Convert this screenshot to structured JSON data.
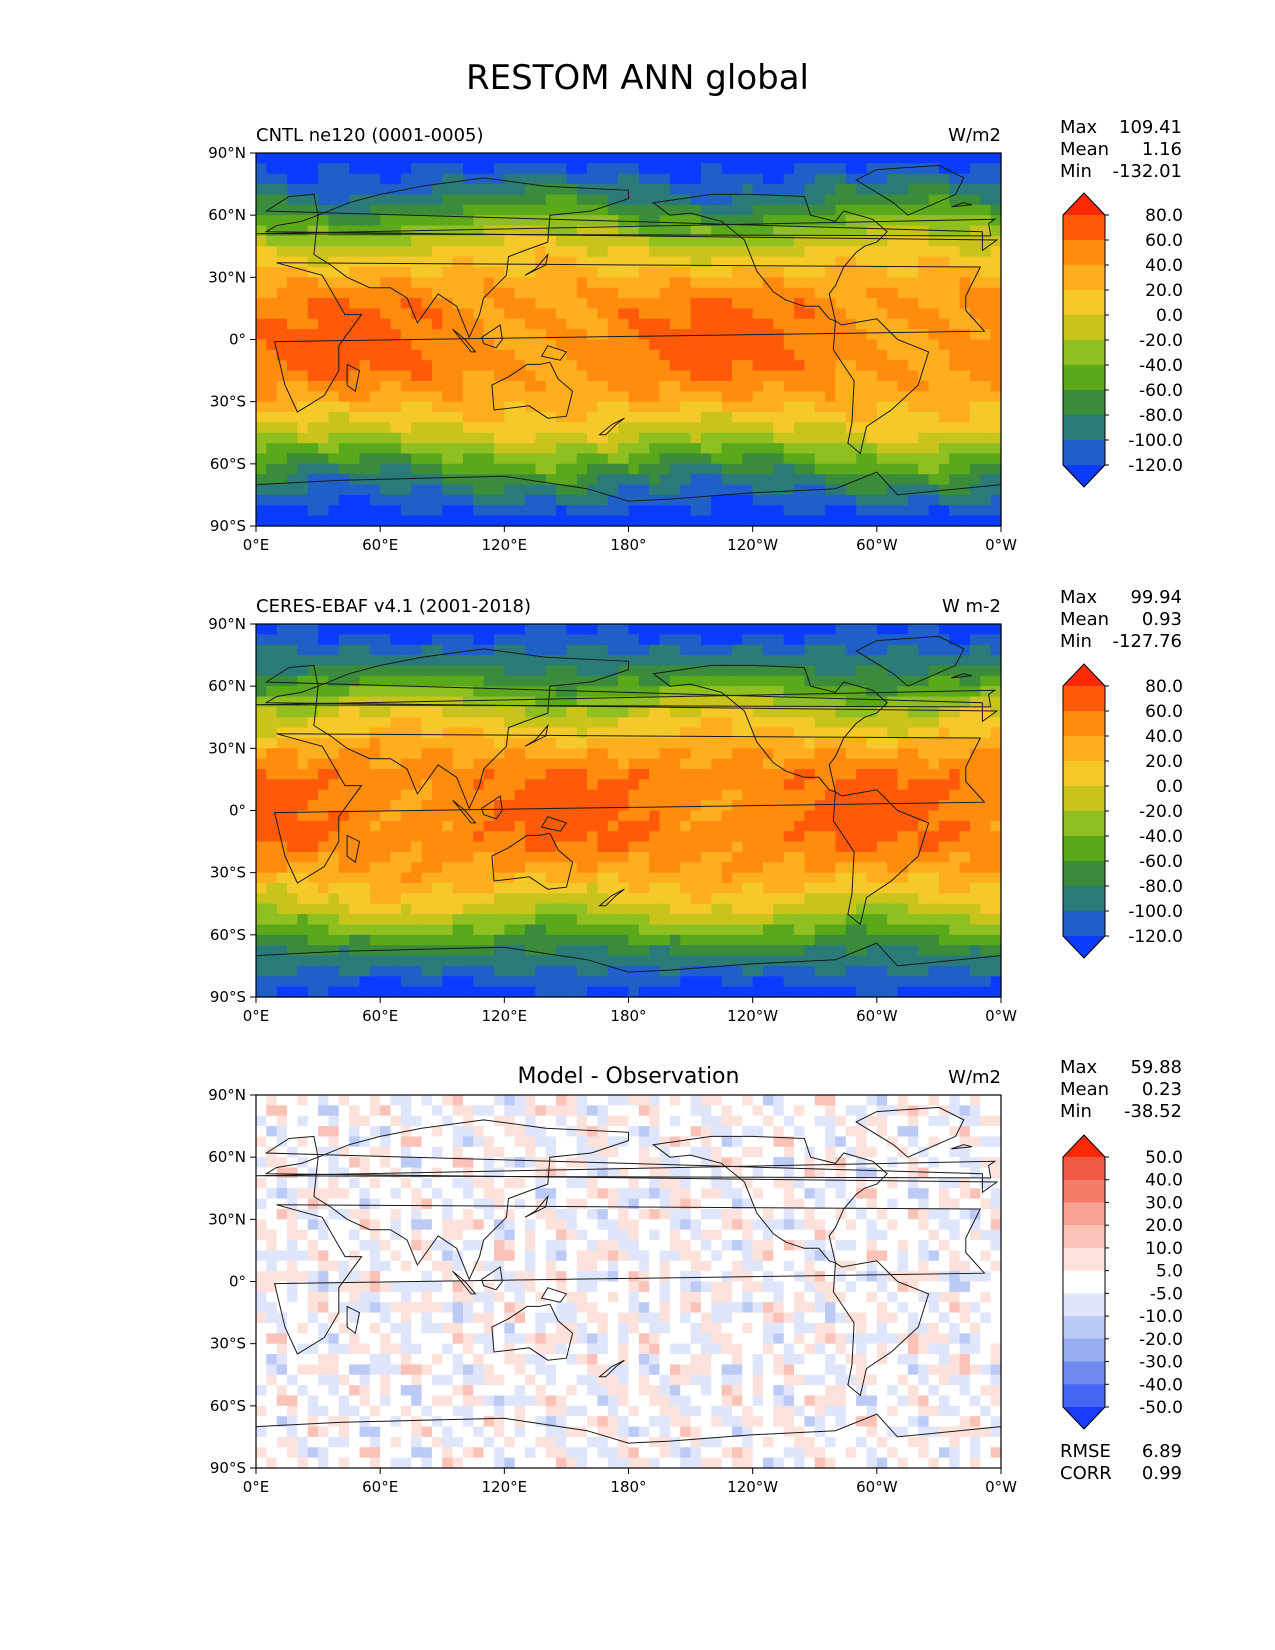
{
  "figure_title": "RESTOM ANN global",
  "chart_data": [
    {
      "type": "heatmap",
      "map_projection": "plate-carree",
      "left_title": "CNTL ne120 (0001-0005)",
      "center_title": "",
      "right_title": "W/m2",
      "xticks": [
        "0°E",
        "60°E",
        "120°E",
        "180°",
        "120°W",
        "60°W",
        "0°W"
      ],
      "yticks": [
        "90°N",
        "60°N",
        "30°N",
        "0°",
        "30°S",
        "60°S",
        "90°S"
      ],
      "xlim": [
        0,
        360
      ],
      "ylim": [
        -90,
        90
      ],
      "stats": {
        "max_label": "Max",
        "max": "109.41",
        "mean_label": "Mean",
        "mean": "1.16",
        "min_label": "Min",
        "min": "-132.01"
      },
      "colorbar": {
        "levels": [
          "80.0",
          "60.0",
          "40.0",
          "20.0",
          "0.0",
          "-20.0",
          "-40.0",
          "-60.0",
          "-80.0",
          "-100.0",
          "-120.0"
        ],
        "colors": [
          "#ff2a05",
          "#ff5a0a",
          "#ff8c0f",
          "#ffaf1e",
          "#f5c92a",
          "#c9c41c",
          "#8fbf20",
          "#5aa91a",
          "#3a8c3a",
          "#2a7a7a",
          "#1e5fc8",
          "#0a3cff"
        ]
      }
    },
    {
      "type": "heatmap",
      "map_projection": "plate-carree",
      "left_title": "CERES-EBAF v4.1 (2001-2018)",
      "center_title": "",
      "right_title": "W m-2",
      "xticks": [
        "0°E",
        "60°E",
        "120°E",
        "180°",
        "120°W",
        "60°W",
        "0°W"
      ],
      "yticks": [
        "90°N",
        "60°N",
        "30°N",
        "0°",
        "30°S",
        "60°S",
        "90°S"
      ],
      "xlim": [
        0,
        360
      ],
      "ylim": [
        -90,
        90
      ],
      "stats": {
        "max_label": "Max",
        "max": "99.94",
        "mean_label": "Mean",
        "mean": "0.93",
        "min_label": "Min",
        "min": "-127.76"
      },
      "colorbar": {
        "levels": [
          "80.0",
          "60.0",
          "40.0",
          "20.0",
          "0.0",
          "-20.0",
          "-40.0",
          "-60.0",
          "-80.0",
          "-100.0",
          "-120.0"
        ],
        "colors": [
          "#ff2a05",
          "#ff5a0a",
          "#ff8c0f",
          "#ffaf1e",
          "#f5c92a",
          "#c9c41c",
          "#8fbf20",
          "#5aa91a",
          "#3a8c3a",
          "#2a7a7a",
          "#1e5fc8",
          "#0a3cff"
        ]
      }
    },
    {
      "type": "heatmap",
      "map_projection": "plate-carree",
      "left_title": "",
      "center_title": "Model - Observation",
      "right_title": "W/m2",
      "xticks": [
        "0°E",
        "60°E",
        "120°E",
        "180°",
        "120°W",
        "60°W",
        "0°W"
      ],
      "yticks": [
        "90°N",
        "60°N",
        "30°N",
        "0°",
        "30°S",
        "60°S",
        "90°S"
      ],
      "xlim": [
        0,
        360
      ],
      "ylim": [
        -90,
        90
      ],
      "stats": {
        "max_label": "Max",
        "max": "59.88",
        "mean_label": "Mean",
        "mean": "0.23",
        "min_label": "Min",
        "min": "-38.52"
      },
      "colorbar": {
        "levels": [
          "50.0",
          "40.0",
          "30.0",
          "20.0",
          "10.0",
          "5.0",
          "-5.0",
          "-10.0",
          "-20.0",
          "-30.0",
          "-40.0",
          "-50.0"
        ],
        "colors": [
          "#ff2a05",
          "#f05a45",
          "#f47d6a",
          "#f8a293",
          "#fbc3b8",
          "#fde2dc",
          "#ffffff",
          "#dfe5fb",
          "#bccaf6",
          "#98aef1",
          "#6f8bf0",
          "#4565f4",
          "#1a3cff"
        ]
      },
      "extra_stats": {
        "rmse_label": "RMSE",
        "rmse": "6.89",
        "corr_label": "CORR",
        "corr": "0.99"
      }
    }
  ]
}
